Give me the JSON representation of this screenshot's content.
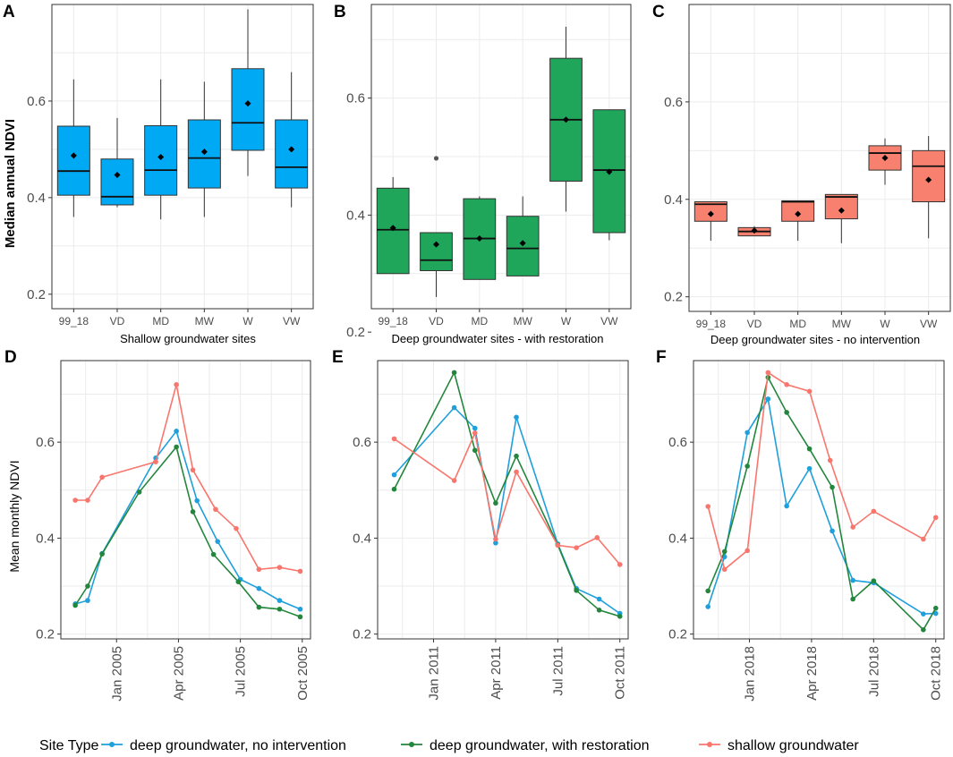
{
  "colors": {
    "blue": "#1f9fdb",
    "green": "#23863c",
    "salmon": "#f8766d",
    "box_blue": "#00a9f4",
    "box_green": "#1fa65a",
    "box_salmon": "#f8806f"
  },
  "legend": {
    "title": "Site Type",
    "items": [
      {
        "label": "deep groundwater, no intervention",
        "color": "#1f9fdb"
      },
      {
        "label": "deep groundwater, with restoration",
        "color": "#23863c"
      },
      {
        "label": "shallow groundwater",
        "color": "#f8766d"
      }
    ]
  },
  "chart_data": [
    {
      "id": "A",
      "type": "box",
      "ylabel": "Median annual NDVI",
      "xlabel": "Shallow groundwater sites",
      "ylim": [
        0.17,
        0.8
      ],
      "yticks": [
        "0.2",
        "0.4",
        "0.6"
      ],
      "yticks_values": [
        0.2,
        0.4,
        0.6
      ],
      "categories": [
        "99_18",
        "VD",
        "MD",
        "MW",
        "W",
        "VW"
      ],
      "boxes": [
        {
          "lo": 0.36,
          "q1": 0.405,
          "med": 0.455,
          "q3": 0.548,
          "hi": 0.645,
          "mean": 0.487
        },
        {
          "lo": 0.38,
          "q1": 0.385,
          "med": 0.402,
          "q3": 0.48,
          "hi": 0.565,
          "mean": 0.447
        },
        {
          "lo": 0.355,
          "q1": 0.405,
          "med": 0.457,
          "q3": 0.549,
          "hi": 0.645,
          "mean": 0.484
        },
        {
          "lo": 0.36,
          "q1": 0.42,
          "med": 0.482,
          "q3": 0.561,
          "hi": 0.64,
          "mean": 0.495
        },
        {
          "lo": 0.445,
          "q1": 0.498,
          "med": 0.555,
          "q3": 0.667,
          "hi": 0.79,
          "mean": 0.595
        },
        {
          "lo": 0.38,
          "q1": 0.42,
          "med": 0.463,
          "q3": 0.561,
          "hi": 0.66,
          "mean": 0.5
        }
      ],
      "outliers": []
    },
    {
      "id": "B",
      "type": "box",
      "ylabel": "",
      "xlabel": "Deep groundwater sites - with restoration",
      "ylim": [
        0.24,
        0.76
      ],
      "yticks": [
        "0.2",
        "0.4",
        "0.6"
      ],
      "yticks_values": [
        0.2,
        0.4,
        0.6
      ],
      "categories": [
        "99_18",
        "VD",
        "MD",
        "MW",
        "W",
        "VW"
      ],
      "boxes": [
        {
          "lo": 0.3,
          "q1": 0.3,
          "med": 0.375,
          "q3": 0.446,
          "hi": 0.465,
          "mean": 0.378
        },
        {
          "lo": 0.26,
          "q1": 0.305,
          "med": 0.323,
          "q3": 0.37,
          "hi": 0.37,
          "mean": 0.35
        },
        {
          "lo": 0.29,
          "q1": 0.29,
          "med": 0.36,
          "q3": 0.428,
          "hi": 0.432,
          "mean": 0.36
        },
        {
          "lo": 0.296,
          "q1": 0.296,
          "med": 0.343,
          "q3": 0.398,
          "hi": 0.432,
          "mean": 0.352
        },
        {
          "lo": 0.406,
          "q1": 0.458,
          "med": 0.563,
          "q3": 0.668,
          "hi": 0.722,
          "mean": 0.563
        },
        {
          "lo": 0.357,
          "q1": 0.37,
          "med": 0.477,
          "q3": 0.58,
          "hi": 0.58,
          "mean": 0.474
        }
      ],
      "outliers": [
        {
          "cat": 1,
          "value": 0.497
        }
      ]
    },
    {
      "id": "C",
      "type": "box",
      "ylabel": "",
      "xlabel": "Deep groundwater sites - no intervention",
      "ylim": [
        0.17,
        0.8
      ],
      "yticks": [
        "0.2",
        "0.4",
        "0.6"
      ],
      "yticks_values": [
        0.2,
        0.4,
        0.6
      ],
      "categories": [
        "99_18",
        "VD",
        "MD",
        "MW",
        "W",
        "VW"
      ],
      "boxes": [
        {
          "lo": 0.315,
          "q1": 0.355,
          "med": 0.39,
          "q3": 0.395,
          "hi": 0.395,
          "mean": 0.37
        },
        {
          "lo": 0.325,
          "q1": 0.325,
          "med": 0.334,
          "q3": 0.342,
          "hi": 0.345,
          "mean": 0.336
        },
        {
          "lo": 0.315,
          "q1": 0.355,
          "med": 0.395,
          "q3": 0.397,
          "hi": 0.397,
          "mean": 0.37
        },
        {
          "lo": 0.31,
          "q1": 0.36,
          "med": 0.405,
          "q3": 0.41,
          "hi": 0.41,
          "mean": 0.377
        },
        {
          "lo": 0.43,
          "q1": 0.46,
          "med": 0.495,
          "q3": 0.51,
          "hi": 0.525,
          "mean": 0.485
        },
        {
          "lo": 0.32,
          "q1": 0.395,
          "med": 0.468,
          "q3": 0.5,
          "hi": 0.53,
          "mean": 0.44
        }
      ],
      "outliers": []
    },
    {
      "id": "D",
      "type": "line",
      "ylabel": "Mean monthly NDVI",
      "xlabel": "",
      "ylim": [
        0.19,
        0.77
      ],
      "yticks": [
        "0.2",
        "0.4",
        "0.6"
      ],
      "yticks_values": [
        0.2,
        0.4,
        0.6
      ],
      "xlim": [
        -1.7,
        10.4
      ],
      "xticks": [
        "Jan 2005",
        "Apr 2005",
        "Jul 2005",
        "Oct 2005"
      ],
      "xticks_values": [
        1,
        4,
        7,
        10
      ],
      "series": [
        {
          "name": "deep groundwater, no intervention",
          "color": "#1f9fdb",
          "x": [
            -1,
            -0.4,
            0.3,
            2.9,
            3.9,
            4.9,
            5.9,
            7,
            7.9,
            8.9,
            9.9
          ],
          "y": [
            0.263,
            0.27,
            0.368,
            0.567,
            0.623,
            0.478,
            0.393,
            0.314,
            0.295,
            0.27,
            0.252
          ]
        },
        {
          "name": "deep groundwater, with restoration",
          "color": "#23863c",
          "x": [
            -1,
            -0.4,
            0.3,
            2.1,
            3.9,
            4.7,
            5.7,
            6.9,
            7.9,
            8.9,
            9.9
          ],
          "y": [
            0.26,
            0.3,
            0.367,
            0.496,
            0.59,
            0.455,
            0.366,
            0.309,
            0.256,
            0.252,
            0.236
          ]
        },
        {
          "name": "shallow groundwater",
          "color": "#f8766d",
          "x": [
            -1,
            -0.4,
            0.3,
            2.9,
            3.9,
            4.7,
            5.8,
            6.8,
            7.9,
            8.9,
            9.9
          ],
          "y": [
            0.479,
            0.479,
            0.527,
            0.559,
            0.72,
            0.542,
            0.46,
            0.42,
            0.335,
            0.339,
            0.331
          ]
        }
      ]
    },
    {
      "id": "E",
      "type": "line",
      "ylabel": "",
      "xlabel": "",
      "ylim": [
        0.19,
        0.77
      ],
      "yticks": [
        "0.2",
        "0.4",
        "0.6"
      ],
      "yticks_values": [
        0.2,
        0.4,
        0.6
      ],
      "xlim": [
        -1.7,
        10.4
      ],
      "xticks": [
        "Jan 2011",
        "Apr 2011",
        "Jul 2011",
        "Oct 2011"
      ],
      "xticks_values": [
        1,
        4,
        7,
        10
      ],
      "series": [
        {
          "name": "deep groundwater, no intervention",
          "color": "#1f9fdb",
          "x": [
            -0.9,
            2,
            3,
            4,
            5,
            7,
            7.9,
            9,
            10
          ],
          "y": [
            0.532,
            0.672,
            0.629,
            0.39,
            0.652,
            0.388,
            0.295,
            0.273,
            0.243
          ]
        },
        {
          "name": "deep groundwater, with restoration",
          "color": "#23863c",
          "x": [
            -0.9,
            2,
            3,
            4,
            5,
            7,
            7.9,
            9,
            10
          ],
          "y": [
            0.502,
            0.745,
            0.583,
            0.473,
            0.571,
            0.386,
            0.291,
            0.25,
            0.237
          ]
        },
        {
          "name": "shallow groundwater",
          "color": "#f8766d",
          "x": [
            -0.9,
            2,
            3,
            4,
            5,
            7,
            7.9,
            8.9,
            10
          ],
          "y": [
            0.607,
            0.52,
            0.619,
            0.398,
            0.538,
            0.385,
            0.38,
            0.401,
            0.345
          ]
        }
      ]
    },
    {
      "id": "F",
      "type": "line",
      "ylabel": "",
      "xlabel": "",
      "ylim": [
        0.19,
        0.77
      ],
      "yticks": [
        "0.2",
        "0.4",
        "0.6"
      ],
      "yticks_values": [
        0.2,
        0.4,
        0.6
      ],
      "xlim": [
        -1.7,
        10.4
      ],
      "xticks": [
        "Jan 2018",
        "Apr 2018",
        "Jul 2018",
        "Oct 2018"
      ],
      "xticks_values": [
        1,
        4,
        7,
        10
      ],
      "series": [
        {
          "name": "deep groundwater, no intervention",
          "color": "#1f9fdb",
          "x": [
            -1,
            -0.2,
            0.9,
            1.9,
            2.8,
            3.9,
            5,
            6,
            7,
            9.4,
            10
          ],
          "y": [
            0.257,
            0.361,
            0.62,
            0.69,
            0.467,
            0.545,
            0.415,
            0.312,
            0.307,
            0.242,
            0.243
          ]
        },
        {
          "name": "deep groundwater, with restoration",
          "color": "#23863c",
          "x": [
            -1,
            -0.2,
            0.9,
            1.9,
            2.8,
            3.9,
            5,
            6,
            7,
            9.4,
            10
          ],
          "y": [
            0.29,
            0.372,
            0.55,
            0.735,
            0.662,
            0.586,
            0.506,
            0.273,
            0.311,
            0.209,
            0.254
          ]
        },
        {
          "name": "shallow groundwater",
          "color": "#f8766d",
          "x": [
            -1,
            -0.2,
            0.9,
            1.9,
            2.8,
            3.9,
            4.9,
            6,
            7,
            9.4,
            10
          ],
          "y": [
            0.466,
            0.335,
            0.374,
            0.745,
            0.72,
            0.706,
            0.562,
            0.423,
            0.456,
            0.398,
            0.443
          ]
        }
      ]
    }
  ]
}
